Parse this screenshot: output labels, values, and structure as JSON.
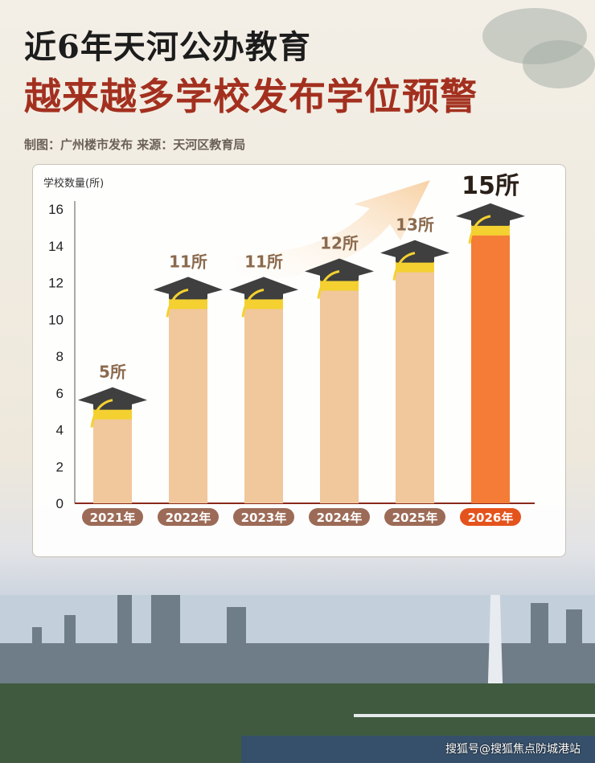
{
  "header": {
    "title_line1": "近6年天河公办教育",
    "title_line2": "越来越多学校发布学位预警",
    "credit": "制图：广州楼市发布   来源：天河区教育局"
  },
  "colors": {
    "bar_normal": "#f1c79c",
    "bar_highlight": "#f47c36",
    "tag_normal": "#9c6b57",
    "tag_highlight": "#e5531c",
    "title_red": "#a3301f",
    "cap": "#3f3f3f",
    "ribbon": "#f4d131"
  },
  "chart_data": {
    "type": "bar",
    "title": "",
    "ylabel": "学校数量(所)",
    "xlabel": "",
    "ylim": [
      0,
      16
    ],
    "yticks": [
      0,
      2,
      4,
      6,
      8,
      10,
      12,
      14,
      16
    ],
    "categories": [
      "2021年",
      "2022年",
      "2023年",
      "2024年",
      "2025年",
      "2026年"
    ],
    "values": [
      5,
      11,
      11,
      12,
      13,
      15
    ],
    "value_labels": [
      "5所",
      "11所",
      "11所",
      "12所",
      "13所",
      "15所"
    ],
    "highlight_index": 5,
    "grid": false,
    "legend": "none"
  },
  "watermark": "搜狐号@搜狐焦点防城港站"
}
